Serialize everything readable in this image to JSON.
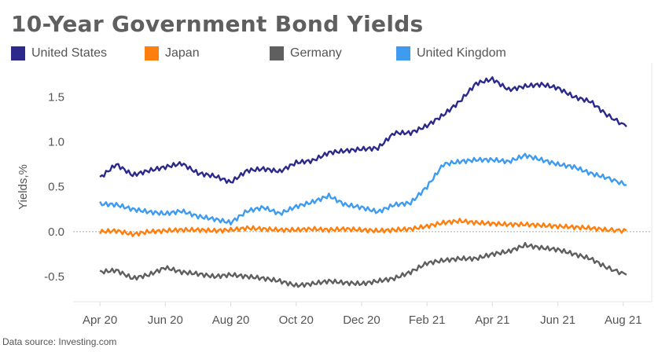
{
  "title": "10-Year Government Bond Yields",
  "source": "Data source: Investing.com",
  "chart_data": {
    "type": "line",
    "title": "10-Year Government Bond Yields",
    "xlabel": "",
    "ylabel": "Yields,%",
    "x_unit": "months since Apr 2020",
    "xlim": [
      -0.82,
      16.87
    ],
    "ylim": [
      -0.78,
      1.88
    ],
    "x_ticks": [
      {
        "v": 0,
        "label": "Apr 20"
      },
      {
        "v": 2,
        "label": "Jun 20"
      },
      {
        "v": 4,
        "label": "Aug 20"
      },
      {
        "v": 6,
        "label": "Oct 20"
      },
      {
        "v": 8,
        "label": "Dec 20"
      },
      {
        "v": 10,
        "label": "Feb 21"
      },
      {
        "v": 12,
        "label": "Apr 21"
      },
      {
        "v": 14,
        "label": "Jun 21"
      },
      {
        "v": 16,
        "label": "Aug 21"
      }
    ],
    "y_ticks": [
      {
        "v": 1.5,
        "label": "1.5"
      },
      {
        "v": 1.0,
        "label": "1.0"
      },
      {
        "v": 0.5,
        "label": "0.5"
      },
      {
        "v": 0.0,
        "label": "0.0"
      },
      {
        "v": -0.5,
        "label": "-0.5"
      }
    ],
    "legend_position": "top-left",
    "x": [
      0,
      0.5,
      1,
      1.5,
      2,
      2.5,
      3,
      3.5,
      4,
      4.5,
      5,
      5.5,
      6,
      6.5,
      7,
      7.5,
      8,
      8.5,
      9,
      9.5,
      10,
      10.5,
      11,
      11.5,
      12,
      12.5,
      13,
      13.5,
      14,
      14.5,
      15,
      15.5,
      16.1
    ],
    "series": [
      {
        "name": "United States",
        "color": "#2b2a8c",
        "values": [
          0.6,
          0.75,
          0.63,
          0.68,
          0.72,
          0.76,
          0.65,
          0.62,
          0.55,
          0.68,
          0.7,
          0.67,
          0.77,
          0.79,
          0.88,
          0.9,
          0.92,
          0.93,
          1.1,
          1.1,
          1.18,
          1.3,
          1.45,
          1.65,
          1.7,
          1.58,
          1.62,
          1.64,
          1.6,
          1.5,
          1.45,
          1.3,
          1.17
        ]
      },
      {
        "name": "Japan",
        "color": "#ff7f0e",
        "values": [
          0.0,
          0.01,
          -0.03,
          0.0,
          0.01,
          0.02,
          0.02,
          0.01,
          0.02,
          0.04,
          0.03,
          0.02,
          0.02,
          0.03,
          0.02,
          0.03,
          0.02,
          0.01,
          0.02,
          0.03,
          0.06,
          0.1,
          0.12,
          0.1,
          0.09,
          0.08,
          0.08,
          0.07,
          0.06,
          0.05,
          0.04,
          0.02,
          0.01
        ]
      },
      {
        "name": "Germany",
        "color": "#5f5f5f",
        "values": [
          -0.45,
          -0.43,
          -0.52,
          -0.48,
          -0.4,
          -0.45,
          -0.47,
          -0.5,
          -0.48,
          -0.5,
          -0.52,
          -0.55,
          -0.6,
          -0.58,
          -0.55,
          -0.57,
          -0.58,
          -0.55,
          -0.52,
          -0.45,
          -0.35,
          -0.32,
          -0.3,
          -0.3,
          -0.25,
          -0.22,
          -0.15,
          -0.18,
          -0.2,
          -0.25,
          -0.3,
          -0.4,
          -0.48
        ]
      },
      {
        "name": "United Kingdom",
        "color": "#3f9bf0",
        "values": [
          0.31,
          0.3,
          0.25,
          0.22,
          0.2,
          0.23,
          0.17,
          0.14,
          0.1,
          0.23,
          0.27,
          0.2,
          0.28,
          0.33,
          0.4,
          0.3,
          0.27,
          0.22,
          0.3,
          0.32,
          0.5,
          0.75,
          0.78,
          0.8,
          0.8,
          0.78,
          0.85,
          0.8,
          0.75,
          0.72,
          0.65,
          0.6,
          0.52
        ]
      }
    ]
  }
}
